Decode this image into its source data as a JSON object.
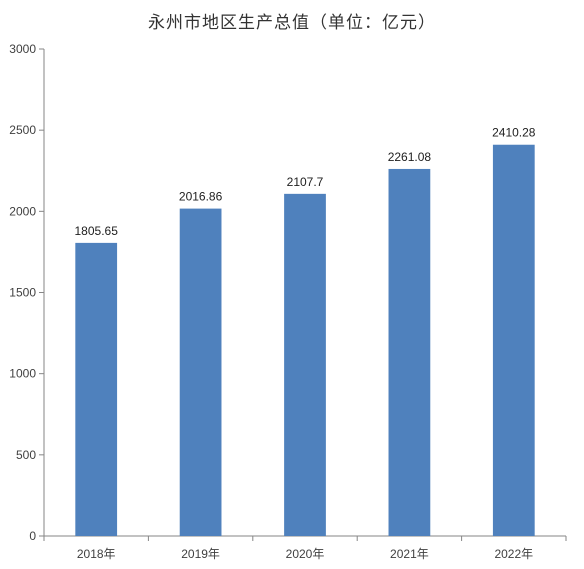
{
  "chart_data": {
    "type": "bar",
    "title": "永州市地区生产总值（单位：亿元）",
    "categories": [
      "2018年",
      "2019年",
      "2020年",
      "2021年",
      "2022年"
    ],
    "values": [
      1805.65,
      2016.86,
      2107.7,
      2261.08,
      2410.28
    ],
    "value_labels": [
      "1805.65",
      "2016.86",
      "2107.7",
      "2261.08",
      "2410.28"
    ],
    "ylim": [
      0,
      3000
    ],
    "yticks": [
      0,
      500,
      1000,
      1500,
      2000,
      2500,
      3000
    ],
    "grid": false,
    "legend": "none",
    "bar_color": "#4f81bd"
  }
}
